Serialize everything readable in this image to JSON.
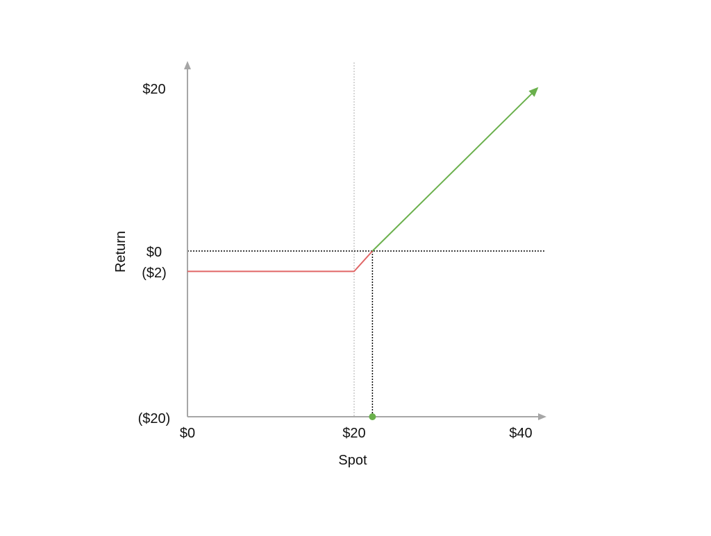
{
  "chart_data": {
    "type": "line",
    "title": "",
    "xlabel": "Spot",
    "ylabel": "Return",
    "xlim": [
      0,
      43
    ],
    "ylim": [
      -20,
      20
    ],
    "x_ticks": [
      {
        "value": 0,
        "label": "$0"
      },
      {
        "value": 20,
        "label": "$20"
      },
      {
        "value": 40,
        "label": "$40"
      }
    ],
    "y_ticks": [
      {
        "value": 20,
        "label": "$20"
      },
      {
        "value": 0,
        "label": "$0"
      },
      {
        "value": -2.5,
        "label": "($2)"
      },
      {
        "value": -20,
        "label": "($20)"
      }
    ],
    "series": [
      {
        "role": "loss",
        "color": "#e06666",
        "points": [
          [
            0,
            -2.5
          ],
          [
            20,
            -2.5
          ],
          [
            22.2,
            0
          ]
        ]
      },
      {
        "role": "profit",
        "color": "#6ab04c",
        "points": [
          [
            22.2,
            0
          ],
          [
            42,
            20
          ]
        ],
        "arrow_end": true
      }
    ],
    "reference_lines": [
      {
        "axis": "x",
        "value": 20,
        "style": "dotted",
        "color": "#c8c8c8"
      },
      {
        "axis": "y",
        "value": 0,
        "style": "dotted",
        "color": "#000000"
      },
      {
        "axis": "x",
        "value": 22.2,
        "style": "dotted",
        "color": "#000000",
        "from": -20,
        "to": 0
      }
    ],
    "markers": [
      {
        "x": 22.2,
        "y": -20,
        "color": "#6ab04c"
      }
    ],
    "grid": false,
    "legend": "none"
  }
}
